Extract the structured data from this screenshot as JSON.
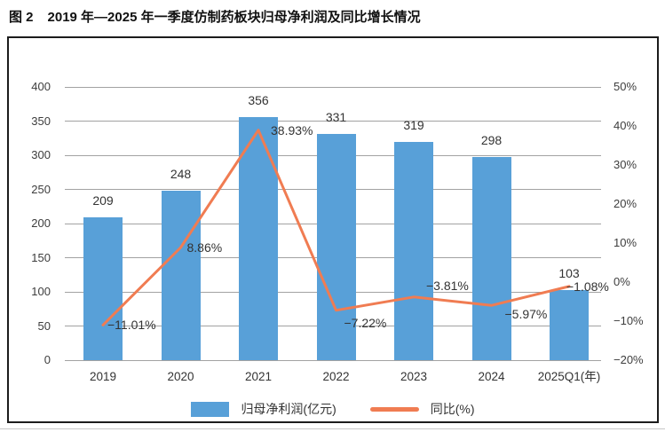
{
  "title": {
    "prefix": "图 2",
    "text": "2019 年—2025 年一季度仿制药板块归母净利润及同比增长情况"
  },
  "chart_data": {
    "type": "bar",
    "title": "2019 年—2025 年一季度仿制药板块归母净利润及同比增长情况",
    "categories": [
      "2019",
      "2020",
      "2021",
      "2022",
      "2023",
      "2024",
      "2025Q1(年)"
    ],
    "series": [
      {
        "name": "归母净利润(亿元)",
        "type": "bar",
        "axis": "left",
        "color": "#58A0D8",
        "values": [
          209,
          248,
          356,
          331,
          319,
          298,
          103
        ],
        "labels": [
          "209",
          "248",
          "356",
          "331",
          "319",
          "298",
          "103"
        ]
      },
      {
        "name": "同比(%)",
        "type": "line",
        "axis": "right",
        "color": "#F07C52",
        "values": [
          -11.01,
          8.86,
          38.93,
          -7.22,
          -3.81,
          -5.97,
          -1.08
        ],
        "labels": [
          "−11.01%",
          "8.86%",
          "38.93%",
          "−7.22%",
          "−3.81%",
          "−5.97%",
          "−1.08%"
        ]
      }
    ],
    "axes": {
      "left": {
        "min": 0,
        "max": 400,
        "step": 50,
        "tick_labels": [
          "400",
          "350",
          "300",
          "250",
          "200",
          "150",
          "100",
          "50",
          "0"
        ]
      },
      "right": {
        "min": -20,
        "max": 50,
        "step": 10,
        "suffix": "%",
        "tick_labels": [
          "50%",
          "40%",
          "30%",
          "20%",
          "10%",
          "0%",
          "−10%",
          "−20%"
        ]
      }
    },
    "grid": true,
    "legend": {
      "position": "bottom",
      "items": [
        {
          "label": "归母净利润(亿元)",
          "swatch": "bar",
          "color": "#58A0D8"
        },
        {
          "label": "同比(%)",
          "swatch": "line",
          "color": "#F07C52"
        }
      ]
    }
  }
}
